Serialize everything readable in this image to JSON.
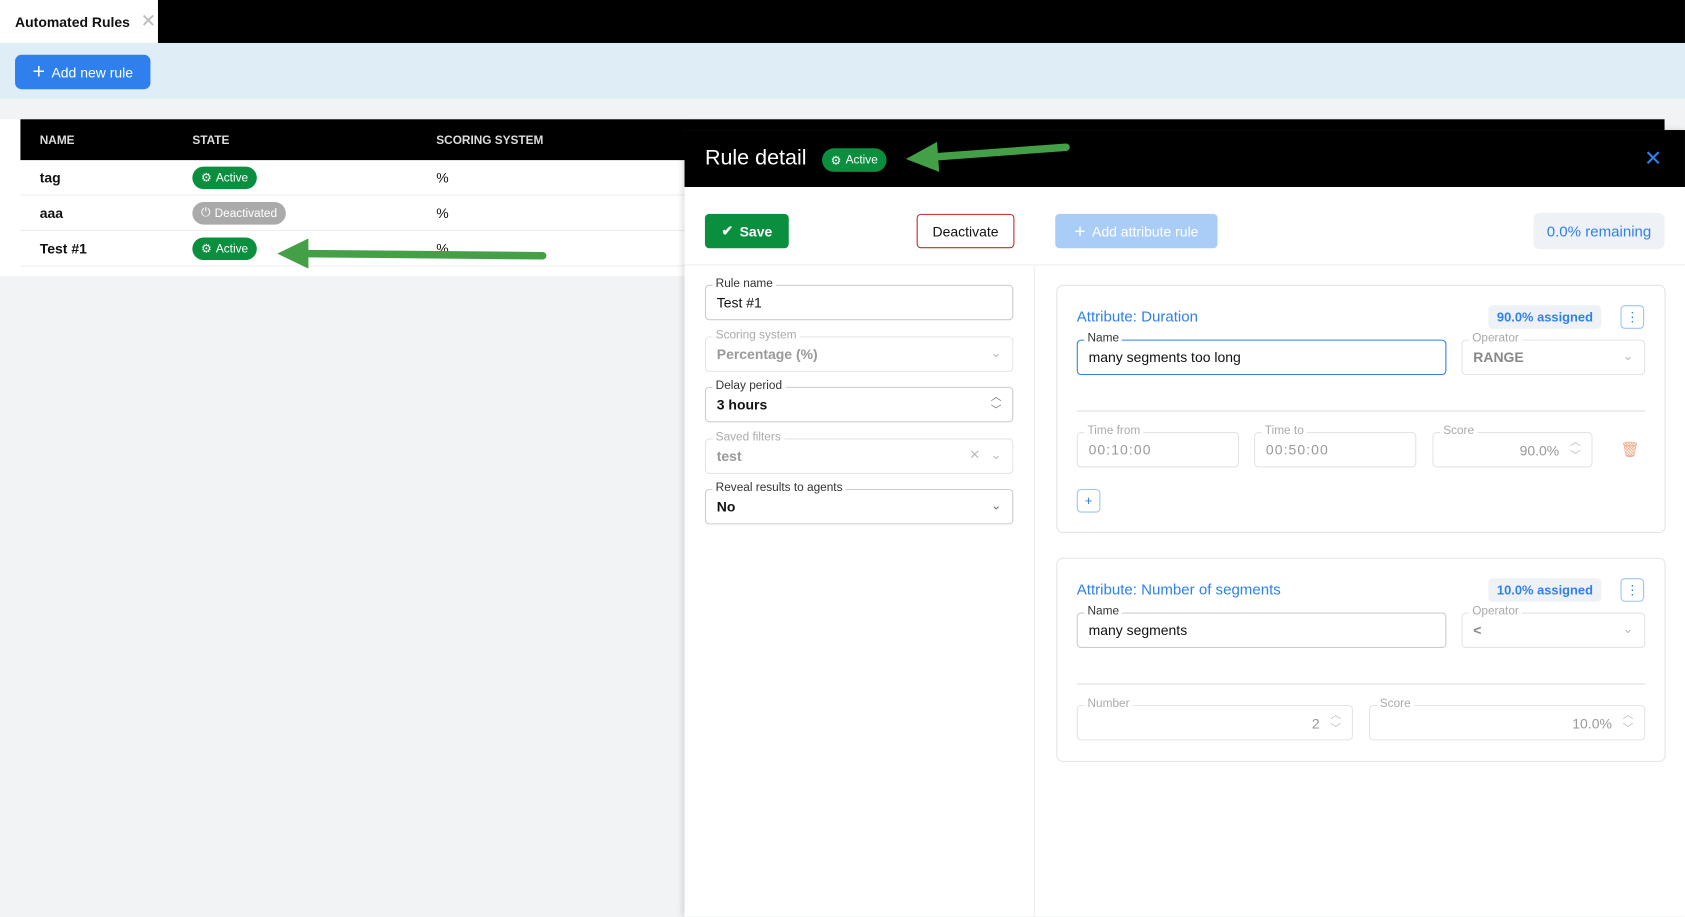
{
  "tab": {
    "title": "Automated Rules",
    "close_icon": "close-icon"
  },
  "toolbar": {
    "add_rule": "Add new rule"
  },
  "table": {
    "columns": [
      "NAME",
      "STATE",
      "SCORING SYSTEM"
    ],
    "rows": [
      {
        "name": "tag",
        "state": "Active",
        "scoring": "%"
      },
      {
        "name": "aaa",
        "state": "Deactivated",
        "scoring": "%"
      },
      {
        "name": "Test #1",
        "state": "Active",
        "scoring": "%"
      }
    ]
  },
  "panel": {
    "title": "Rule detail",
    "state": "Active",
    "save": "Save",
    "deactivate": "Deactivate",
    "add_attribute": "Add attribute rule",
    "remaining": "0.0% remaining",
    "fields": {
      "rule_name": {
        "label": "Rule name",
        "value": "Test #1"
      },
      "scoring": {
        "label": "Scoring system",
        "value": "Percentage (%)"
      },
      "delay": {
        "label": "Delay period",
        "value": "3 hours"
      },
      "filters": {
        "label": "Saved filters",
        "value": "test"
      },
      "reveal": {
        "label": "Reveal results to agents",
        "value": "No"
      }
    },
    "attributes": [
      {
        "title": "Attribute: Duration",
        "assigned": "90.0% assigned",
        "name_label": "Name",
        "name": "many segments too long",
        "operator_label": "Operator",
        "operator": "RANGE",
        "from_label": "Time from",
        "from": "00:10:00",
        "to_label": "Time to",
        "to": "00:50:00",
        "score_label": "Score",
        "score": "90.0%"
      },
      {
        "title": "Attribute: Number of segments",
        "assigned": "10.0% assigned",
        "name_label": "Name",
        "name": "many segments",
        "operator_label": "Operator",
        "operator": "<",
        "number_label": "Number",
        "number": "2",
        "score_label": "Score",
        "score": "10.0%"
      }
    ]
  },
  "colors": {
    "accent": "#2f80ed",
    "active": "#0a8f3e",
    "deactivated": "#aaaaaa",
    "danger": "#c62828",
    "arrow": "#43a047"
  }
}
